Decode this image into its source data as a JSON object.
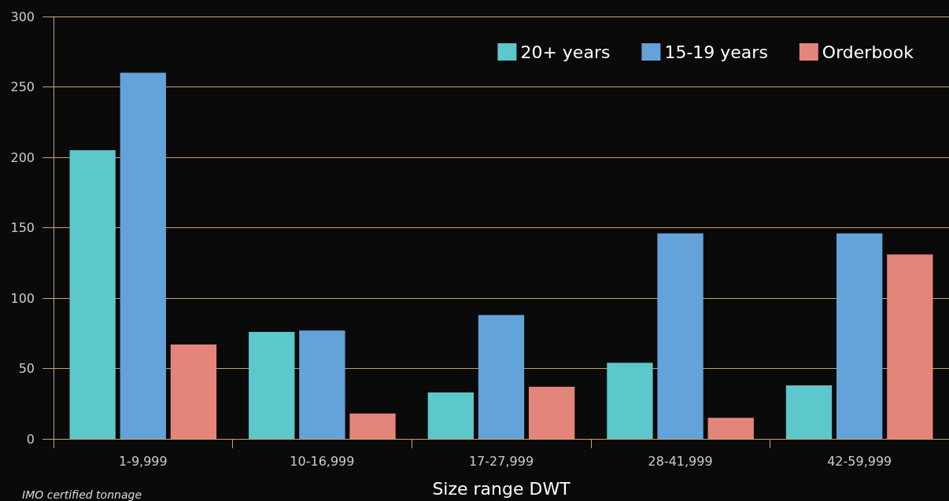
{
  "chart_data": {
    "type": "bar",
    "xlabel": "Size range DWT",
    "annotations": [
      "IMO certified tonnage"
    ],
    "categories": [
      "1-9,999",
      "10-16,999",
      "17-27,999",
      "28-41,999",
      "42-59,999"
    ],
    "series": [
      {
        "name": "20+ years",
        "color": "#5cc8cc",
        "values": [
          205,
          76,
          33,
          54,
          38
        ]
      },
      {
        "name": "15-19 years",
        "color": "#64a2da",
        "values": [
          260,
          77,
          88,
          146,
          146
        ]
      },
      {
        "name": "Orderbook",
        "color": "#e4857c",
        "values": [
          67,
          18,
          37,
          15,
          131
        ]
      }
    ],
    "ylim": [
      0,
      300
    ],
    "yticks": [
      0,
      50,
      100,
      150,
      200,
      250,
      300
    ],
    "grid": "y",
    "legend": "top right"
  }
}
